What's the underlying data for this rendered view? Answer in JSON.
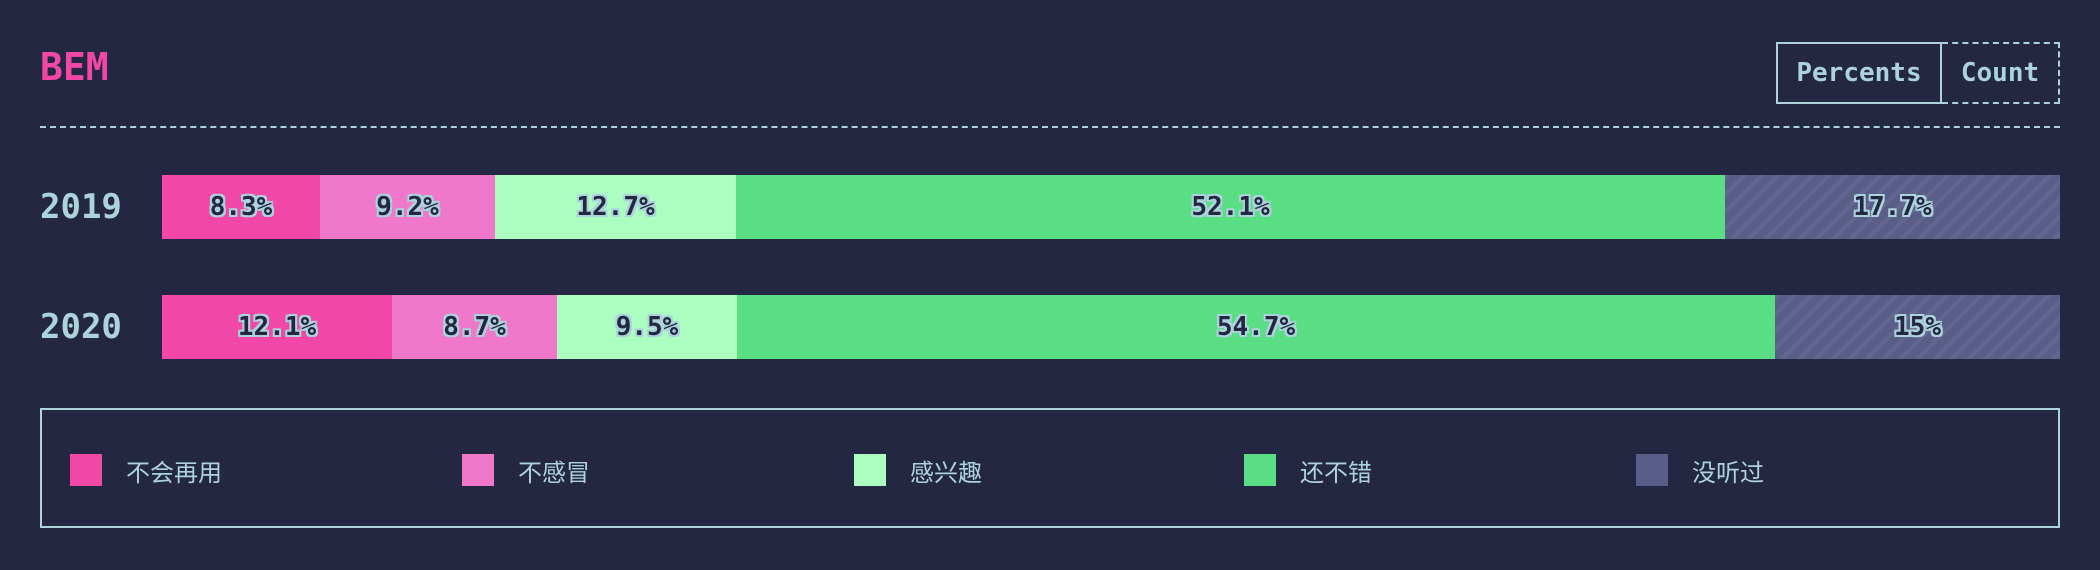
{
  "header": {
    "title": "BEM",
    "toggle": {
      "percents_label": "Percents",
      "count_label": "Count",
      "active": "percents"
    }
  },
  "chart_data": {
    "type": "bar",
    "orientation": "horizontal",
    "stacked": true,
    "normalized": true,
    "categories": [
      "2019",
      "2020"
    ],
    "series": [
      {
        "name": "不会再用",
        "color": "#f147a7",
        "values": [
          8.3,
          12.1
        ],
        "labels": [
          "8.3%",
          "12.1%"
        ]
      },
      {
        "name": "不感冒",
        "color": "#ef78cb",
        "values": [
          9.2,
          8.7
        ],
        "labels": [
          "9.2%",
          "8.7%"
        ]
      },
      {
        "name": "感兴趣",
        "color": "#acfdc0",
        "values": [
          12.7,
          9.5
        ],
        "labels": [
          "12.7%",
          "9.5%"
        ]
      },
      {
        "name": "还不错",
        "color": "#5ade83",
        "values": [
          52.1,
          54.7
        ],
        "labels": [
          "52.1%",
          "54.7%"
        ]
      },
      {
        "name": "没听过",
        "color": "#595e88",
        "values": [
          17.7,
          15.0
        ],
        "labels": [
          "17.7%",
          "15%"
        ]
      }
    ],
    "xlim": [
      0,
      100
    ],
    "legend_position": "bottom"
  }
}
